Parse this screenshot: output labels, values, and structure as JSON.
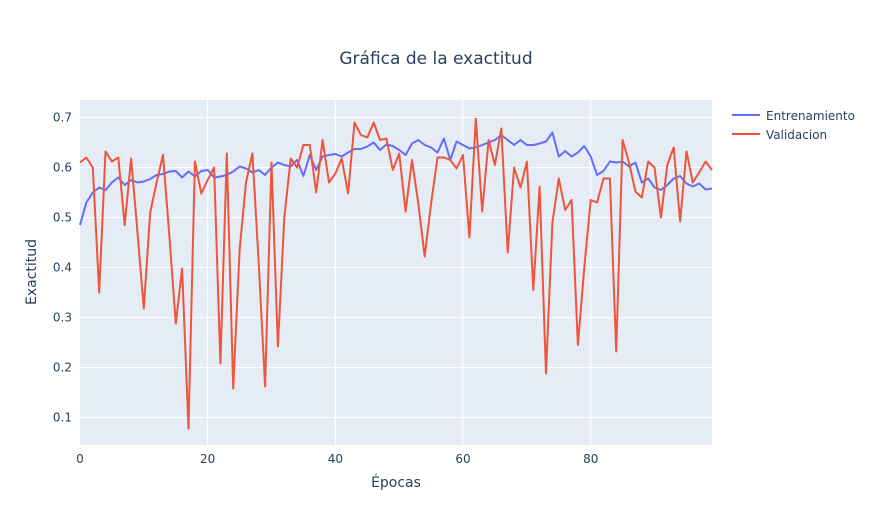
{
  "chart_data": {
    "type": "line",
    "title": "Gráfica de la exactitud",
    "xlabel": "Épocas",
    "ylabel": "Exactitud",
    "xlim": [
      0,
      99
    ],
    "ylim": [
      0.045,
      0.735
    ],
    "xticks": [
      0,
      20,
      40,
      60,
      80
    ],
    "yticks": [
      0.1,
      0.2,
      0.3,
      0.4,
      0.5,
      0.6,
      0.7
    ],
    "grid": true,
    "legend_position": "top-right",
    "background": "#E5ECF6",
    "series": [
      {
        "name": "Entrenamiento",
        "color": "#636EFA",
        "values": [
          0.485,
          0.53,
          0.55,
          0.56,
          0.555,
          0.57,
          0.58,
          0.565,
          0.575,
          0.57,
          0.572,
          0.577,
          0.585,
          0.587,
          0.592,
          0.593,
          0.58,
          0.592,
          0.582,
          0.593,
          0.595,
          0.58,
          0.582,
          0.585,
          0.592,
          0.602,
          0.598,
          0.59,
          0.595,
          0.585,
          0.6,
          0.61,
          0.605,
          0.602,
          0.615,
          0.583,
          0.625,
          0.595,
          0.622,
          0.625,
          0.627,
          0.622,
          0.63,
          0.637,
          0.637,
          0.642,
          0.65,
          0.635,
          0.646,
          0.643,
          0.635,
          0.625,
          0.648,
          0.655,
          0.645,
          0.64,
          0.63,
          0.658,
          0.615,
          0.652,
          0.645,
          0.638,
          0.64,
          0.645,
          0.65,
          0.655,
          0.665,
          0.655,
          0.645,
          0.655,
          0.645,
          0.645,
          0.648,
          0.652,
          0.67,
          0.622,
          0.633,
          0.622,
          0.63,
          0.643,
          0.622,
          0.585,
          0.593,
          0.612,
          0.61,
          0.612,
          0.602,
          0.61,
          0.57,
          0.578,
          0.56,
          0.555,
          0.565,
          0.578,
          0.583,
          0.568,
          0.562,
          0.568,
          0.556,
          0.558
        ]
      },
      {
        "name": "Validacion",
        "color": "#EF553B",
        "values": [
          0.61,
          0.62,
          0.6,
          0.35,
          0.632,
          0.612,
          0.62,
          0.485,
          0.618,
          0.47,
          0.318,
          0.51,
          0.57,
          0.625,
          0.462,
          0.288,
          0.398,
          0.078,
          0.612,
          0.548,
          0.575,
          0.6,
          0.208,
          0.628,
          0.158,
          0.435,
          0.57,
          0.628,
          0.41,
          0.162,
          0.61,
          0.242,
          0.5,
          0.618,
          0.6,
          0.645,
          0.645,
          0.55,
          0.655,
          0.57,
          0.588,
          0.618,
          0.548,
          0.69,
          0.665,
          0.66,
          0.69,
          0.655,
          0.658,
          0.595,
          0.628,
          0.512,
          0.615,
          0.528,
          0.422,
          0.528,
          0.62,
          0.62,
          0.615,
          0.598,
          0.625,
          0.46,
          0.698,
          0.512,
          0.655,
          0.605,
          0.678,
          0.43,
          0.6,
          0.56,
          0.612,
          0.355,
          0.562,
          0.188,
          0.49,
          0.578,
          0.515,
          0.535,
          0.245,
          0.4,
          0.535,
          0.53,
          0.578,
          0.578,
          0.232,
          0.655,
          0.61,
          0.552,
          0.54,
          0.612,
          0.6,
          0.5,
          0.605,
          0.64,
          0.492,
          0.632,
          0.57,
          0.59,
          0.612,
          0.595
        ]
      }
    ]
  }
}
